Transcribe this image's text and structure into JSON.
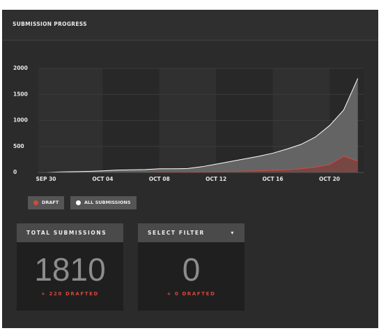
{
  "header": {
    "title": "SUBMISSION PROGRESS"
  },
  "chart_data": {
    "type": "area",
    "categories": [
      "SEP 30",
      null,
      null,
      null,
      "OCT 04",
      null,
      null,
      null,
      "OCT 08",
      null,
      null,
      null,
      "OCT 12",
      null,
      null,
      null,
      "OCT 16",
      null,
      null,
      null,
      "OCT 20",
      null,
      null
    ],
    "series": [
      {
        "name": "ALL SUBMISSIONS",
        "color": "#ffffff",
        "fill": "#6a6a6a",
        "values": [
          0,
          10,
          15,
          20,
          30,
          45,
          50,
          55,
          70,
          70,
          75,
          110,
          160,
          210,
          260,
          310,
          370,
          450,
          540,
          680,
          900,
          1200,
          1810
        ]
      },
      {
        "name": "DRAFT",
        "color": "#d9463c",
        "fill": "#7a4440",
        "values": [
          0,
          0,
          0,
          0,
          0,
          0,
          0,
          0,
          5,
          5,
          5,
          10,
          15,
          20,
          25,
          30,
          40,
          50,
          70,
          100,
          150,
          310,
          220
        ]
      }
    ],
    "ylim": [
      0,
      2000
    ],
    "yticks": [
      0,
      500,
      1000,
      1500,
      2000
    ],
    "grid": true
  },
  "cards": [
    {
      "title": "TOTAL SUBMISSIONS",
      "value": "1810",
      "sub": "+ 220 DRAFTED"
    },
    {
      "title": "SELECT FILTER",
      "value": "0",
      "sub": "+ 0 DRAFTED"
    }
  ]
}
